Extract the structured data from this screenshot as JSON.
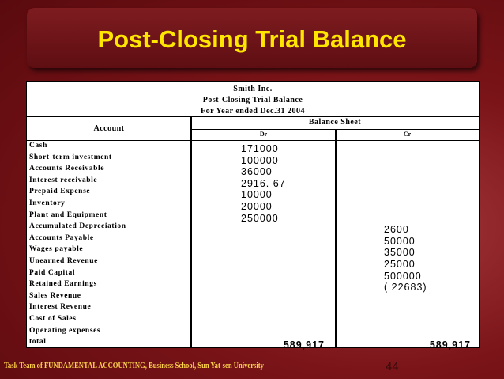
{
  "slide": {
    "title": "Post-Closing Trial Balance",
    "footer": "Task Team of FUNDAMENTAL ACCOUNTING, Business School, Sun Yat-sen University",
    "page_number": "44"
  },
  "table": {
    "company": "Smith Inc.",
    "report": "Post-Closing Trial Balance",
    "period": "For Year ended Dec.31 2004",
    "col_account": "Account",
    "col_group": "Balance Sheet",
    "col_dr": "Dr",
    "col_cr": "Cr",
    "rows": [
      {
        "account": "Cash",
        "dr": "171000",
        "cr": ""
      },
      {
        "account": "Short-term investment",
        "dr": "100000",
        "cr": ""
      },
      {
        "account": "Accounts Receivable",
        "dr": "36000",
        "cr": ""
      },
      {
        "account": "Interest receivable",
        "dr": "2916. 67",
        "cr": ""
      },
      {
        "account": "Prepaid Expense",
        "dr": "10000",
        "cr": ""
      },
      {
        "account": "Inventory",
        "dr": "20000",
        "cr": ""
      },
      {
        "account": "Plant and Equipment",
        "dr": "250000",
        "cr": ""
      },
      {
        "account": "Accumulated Depreciation",
        "dr": "",
        "cr": "2600"
      },
      {
        "account": "Accounts Payable",
        "dr": "",
        "cr": "50000"
      },
      {
        "account": "Wages payable",
        "dr": "",
        "cr": "35000"
      },
      {
        "account": "Unearned Revenue",
        "dr": "",
        "cr": "25000"
      },
      {
        "account": "Paid Capital",
        "dr": "",
        "cr": "500000"
      },
      {
        "account": "Retained Earnings",
        "dr": "",
        "cr": "( 22683)"
      },
      {
        "account": "Sales Revenue",
        "dr": "",
        "cr": ""
      },
      {
        "account": "Interest Revenue",
        "dr": "",
        "cr": ""
      },
      {
        "account": "Cost of Sales",
        "dr": "",
        "cr": ""
      },
      {
        "account": "Operating expenses",
        "dr": "",
        "cr": ""
      }
    ],
    "total": {
      "account": "total",
      "dr": "589,917",
      "cr": "589,917"
    }
  }
}
